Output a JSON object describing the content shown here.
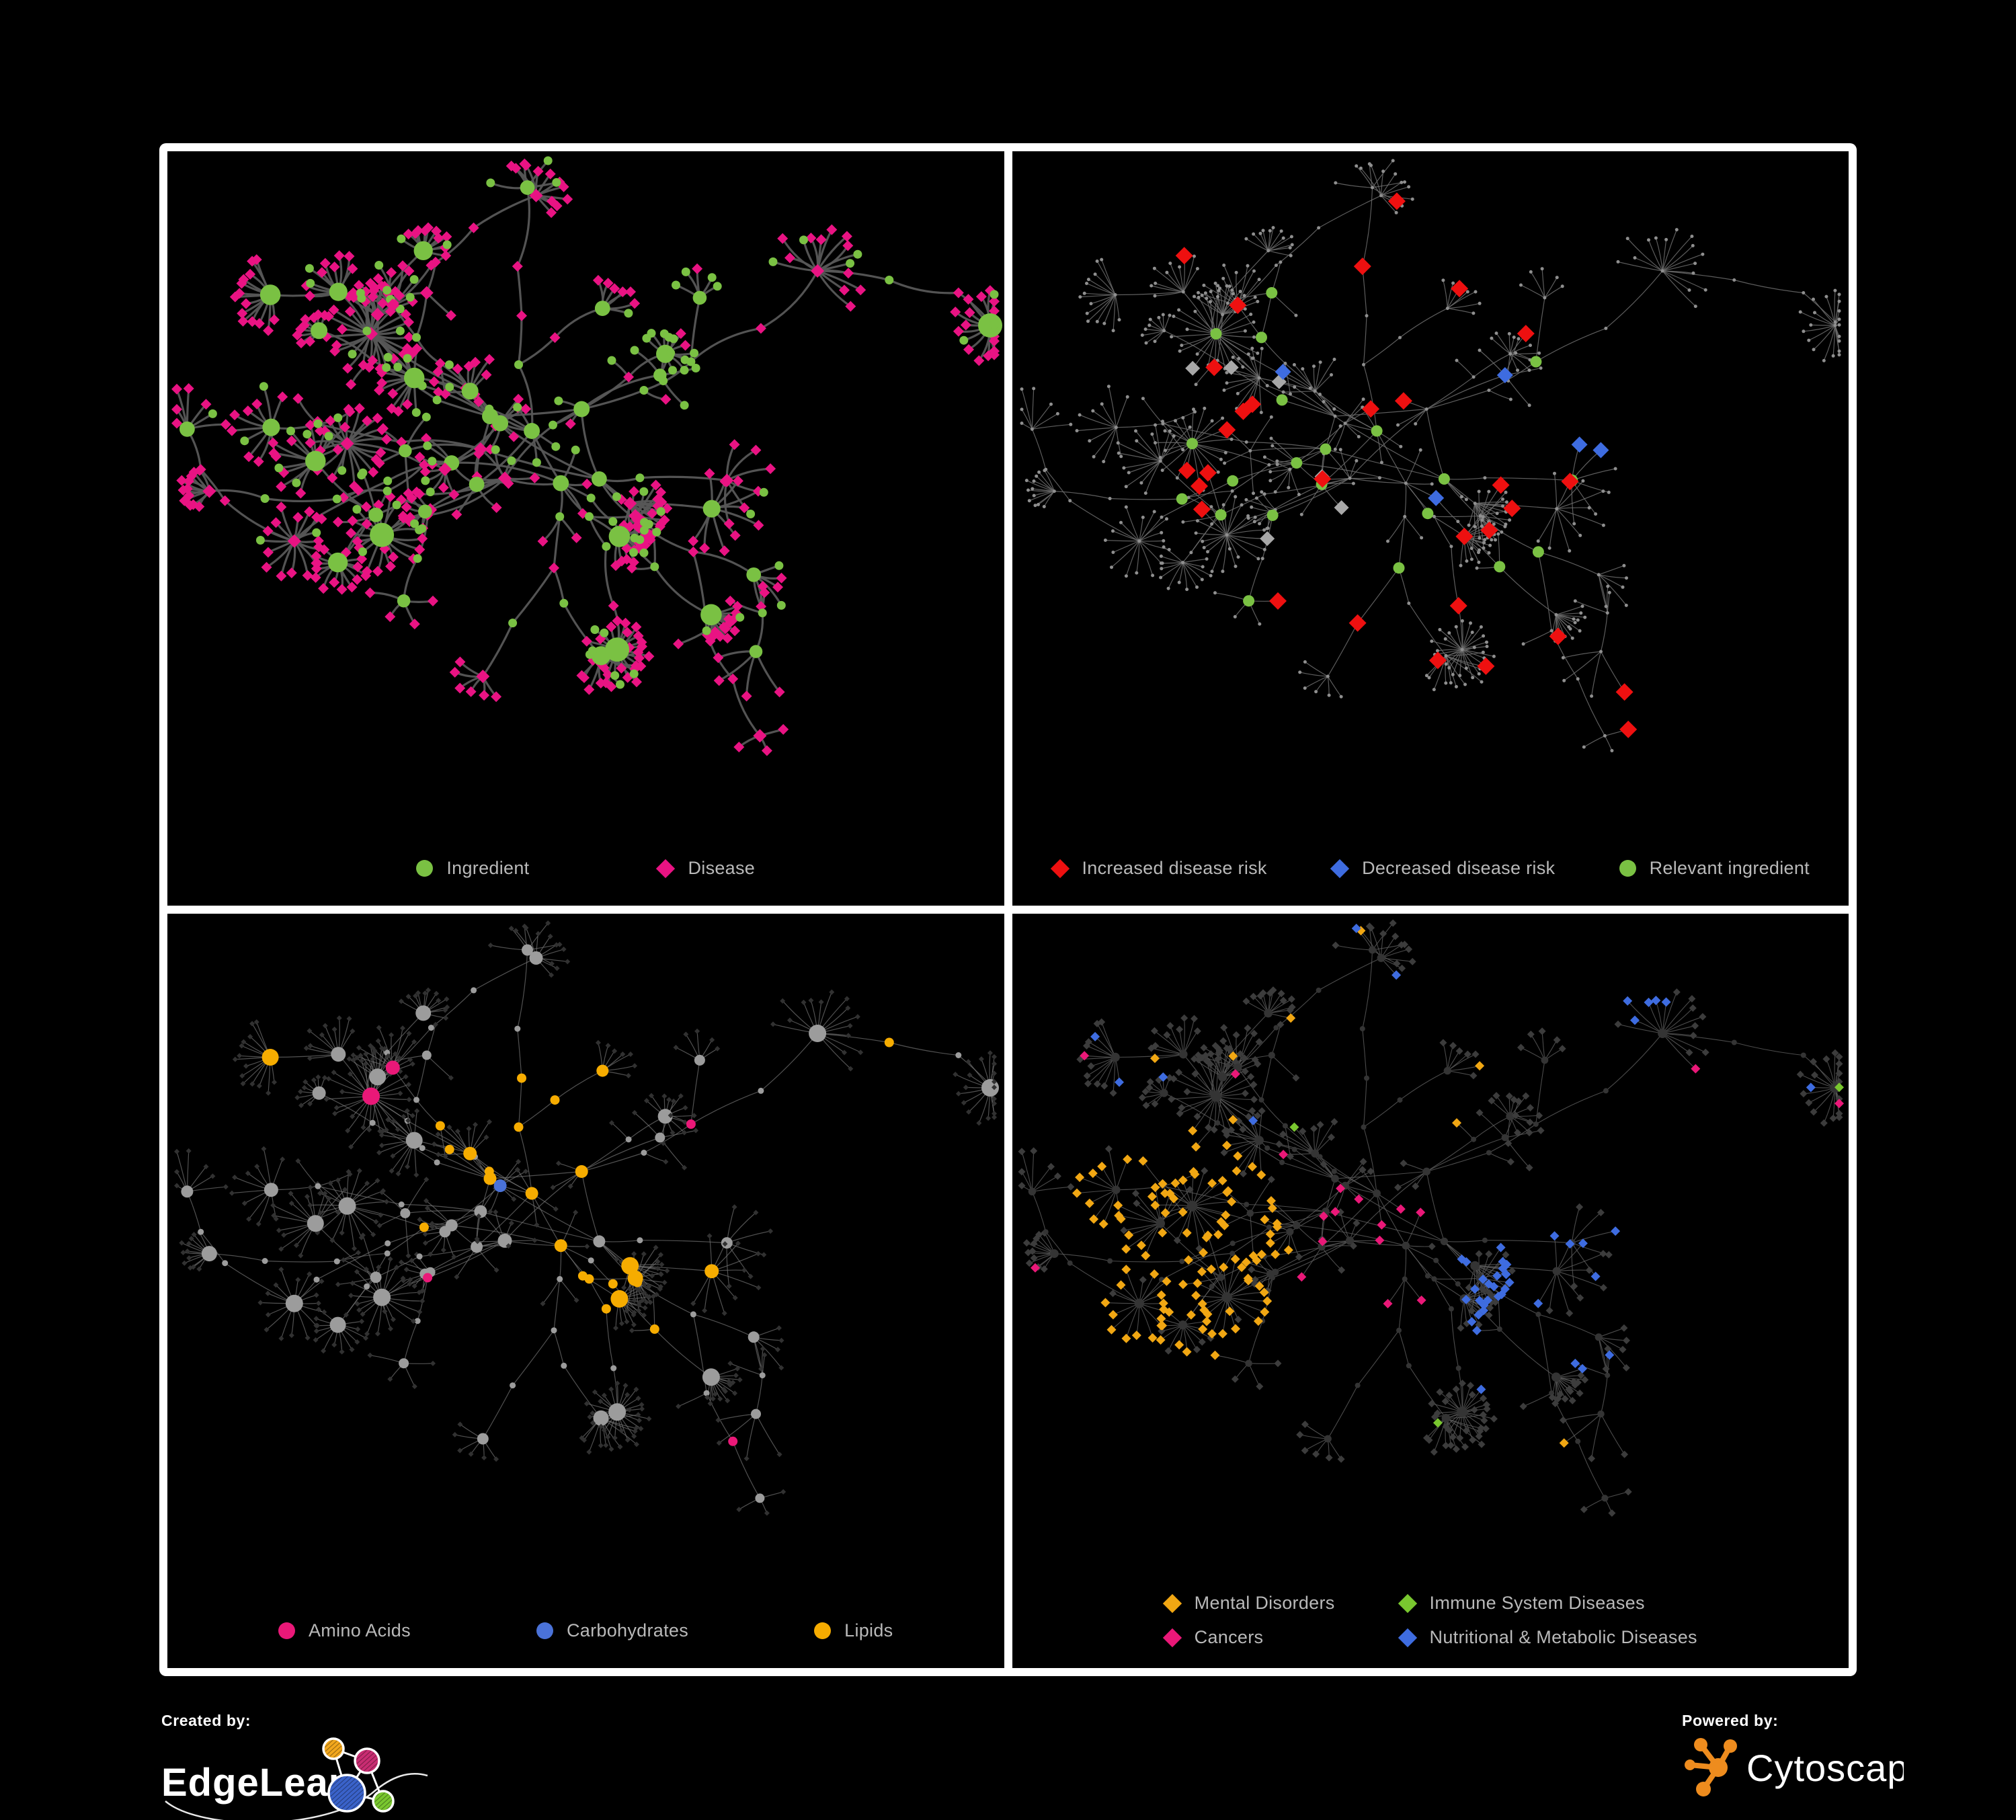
{
  "branding": {
    "created_by_label": "Created by:",
    "created_by_brand": "EdgeLeap",
    "powered_by_label": "Powered by:",
    "powered_by_brand": "Cytoscape"
  },
  "figure": {
    "background": "#000000",
    "frame_color": "#ffffff",
    "legend_text_color": "#b9b9b9"
  },
  "panels": [
    {
      "legend": [
        {
          "label": "Ingredient",
          "shape": "circle",
          "color": "#7ac143"
        },
        {
          "label": "Disease",
          "shape": "diamond",
          "color": "#e91383"
        }
      ],
      "style": {
        "edge": "#575757",
        "ingredient": "#7ac143",
        "disease": "#e91383"
      }
    },
    {
      "legend": [
        {
          "label": "Increased disease risk",
          "shape": "diamond",
          "color": "#ee1010"
        },
        {
          "label": "Decreased disease risk",
          "shape": "diamond",
          "color": "#3e6ce0"
        },
        {
          "label": "Relevant ingredient",
          "shape": "circle",
          "color": "#7ac143"
        }
      ],
      "style": {
        "edge": "#6d6d6d",
        "node": "#8f8f8f",
        "increased": "#ee1010",
        "decreased": "#3e6ce0",
        "neutral": "#a8a8a8",
        "ingredient": "#7ac143"
      }
    },
    {
      "legend": [
        {
          "label": "Amino Acids",
          "shape": "circle",
          "color": "#ea1878"
        },
        {
          "label": "Carbohydrates",
          "shape": "circle",
          "color": "#4a72d8"
        },
        {
          "label": "Lipids",
          "shape": "circle",
          "color": "#f6ac00"
        }
      ],
      "style": {
        "edge": "#737373",
        "node": "#9c9c9c",
        "leaf": "#313131",
        "amino": "#ea1878",
        "carbs": "#4a72d8",
        "lipids": "#f6ac00"
      }
    },
    {
      "legend": [
        {
          "label": "Mental Disorders",
          "shape": "diamond",
          "color": "#f1a713"
        },
        {
          "label": "Immune System Diseases",
          "shape": "diamond",
          "color": "#79c72f"
        },
        {
          "label": "Cancers",
          "shape": "diamond",
          "color": "#ea1878"
        },
        {
          "label": "Nutritional & Metabolic Diseases",
          "shape": "diamond",
          "color": "#3e6ce0"
        }
      ],
      "style": {
        "edge": "#5e5e5e",
        "node": "#343434",
        "leaf": "#3c3c3c",
        "mental": "#f1a713",
        "immune": "#79c72f",
        "cancers": "#ea1878",
        "nutritional": "#3e6ce0"
      }
    }
  ]
}
